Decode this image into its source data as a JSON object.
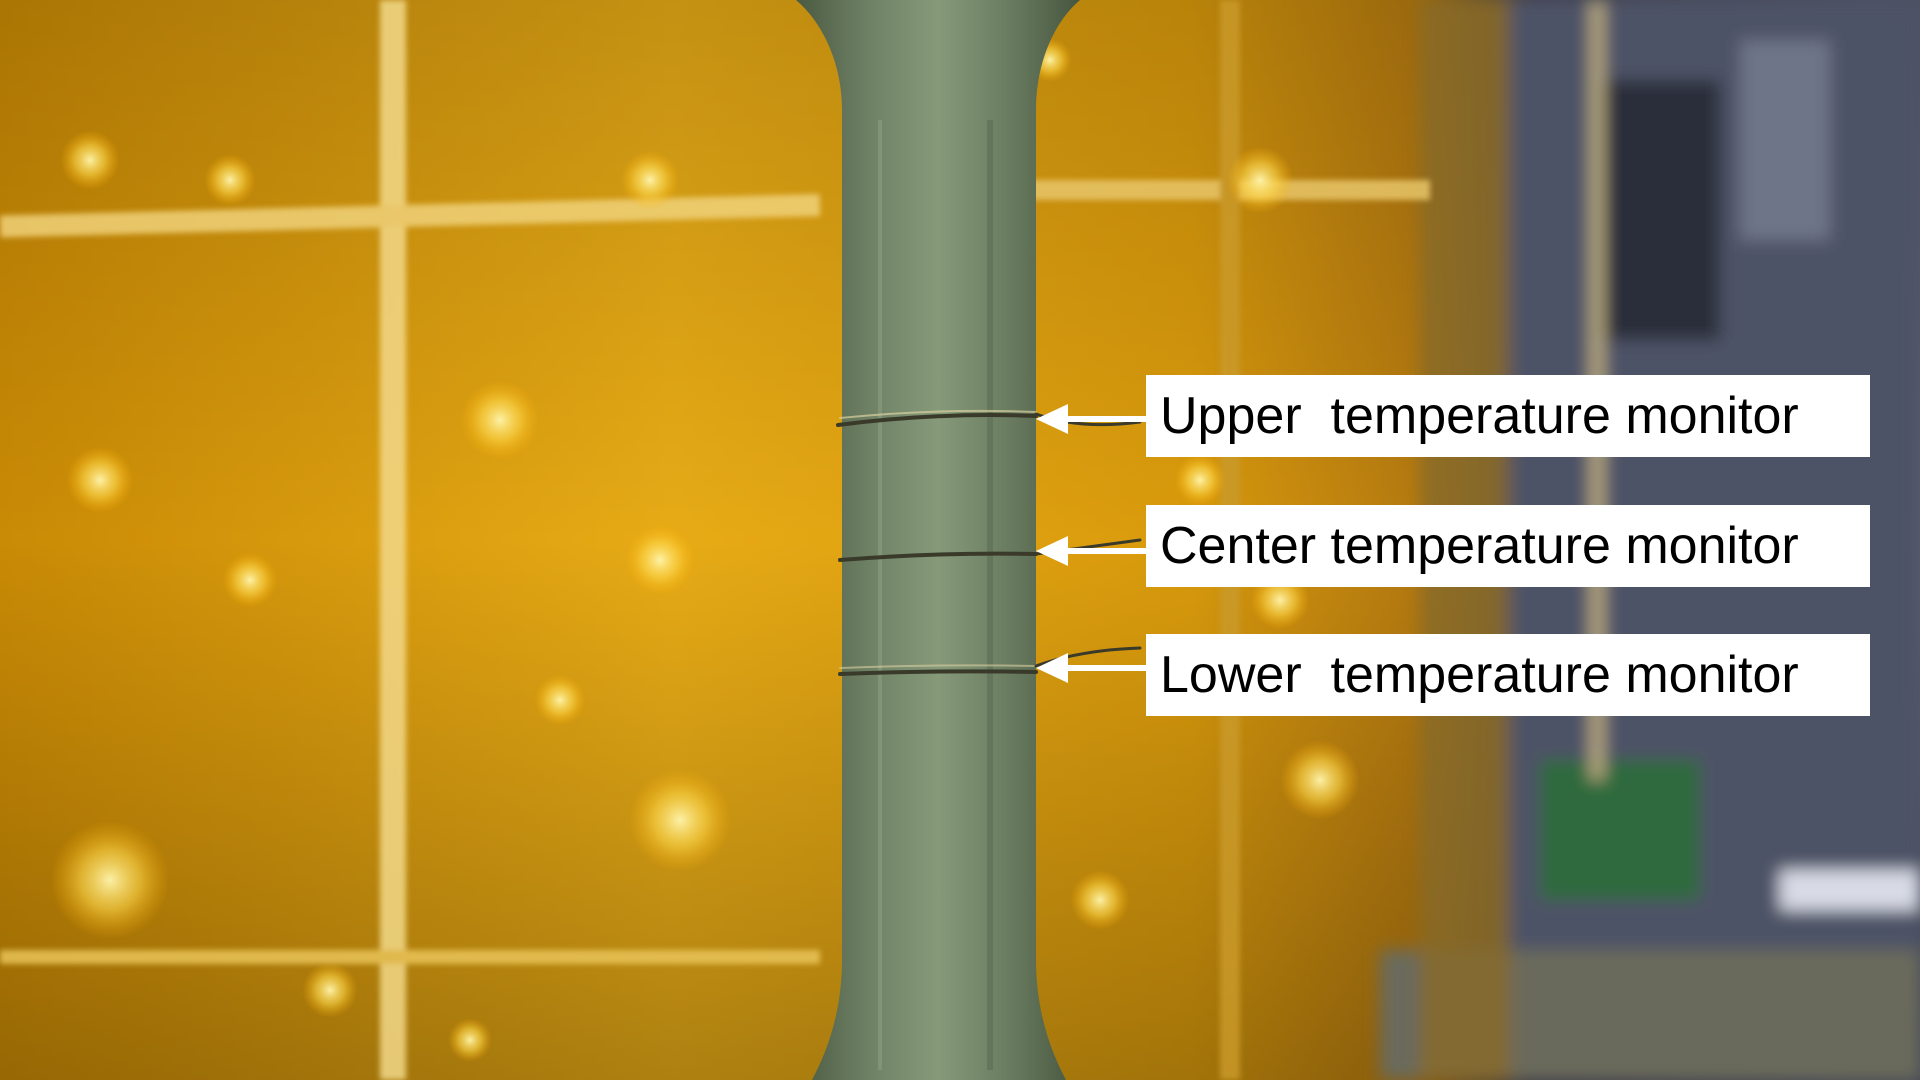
{
  "labels": {
    "upper": "Upper  temperature monitor",
    "center": "Center temperature monitor",
    "lower": "Lower  temperature monitor"
  },
  "colors": {
    "background_amber": "#e0a010",
    "specimen_green": "#6d7f62",
    "label_background": "#ffffff",
    "label_text": "#000000",
    "arrow": "#ffffff"
  }
}
